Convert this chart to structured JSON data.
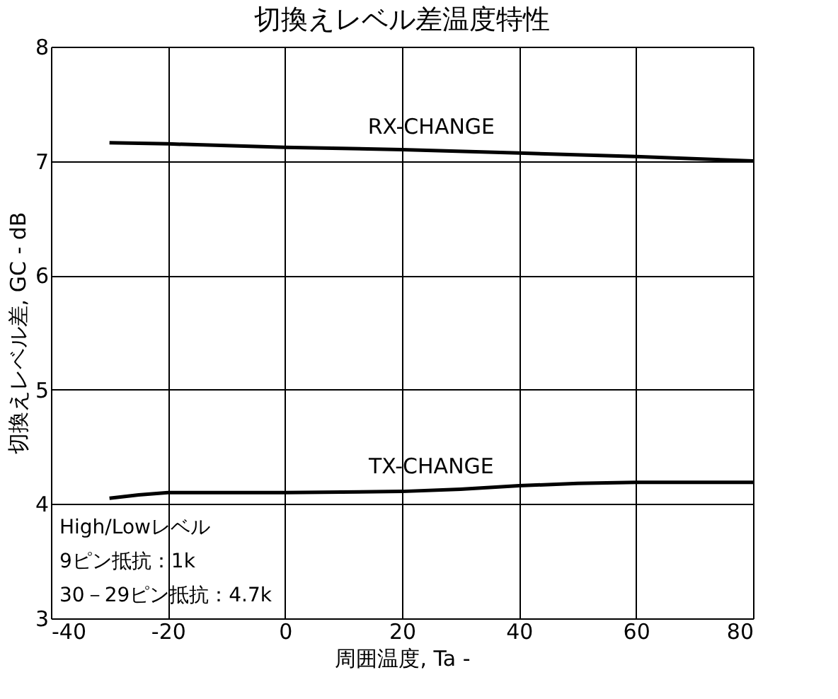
{
  "chart_data": {
    "type": "line",
    "title": "切換えレベル差温度特性",
    "xlabel": "周囲温度, Ta  -",
    "ylabel": "切換えレベル差, GC  -  dB",
    "xlim": [
      -40,
      80
    ],
    "xticks": [
      -40,
      -20,
      0,
      20,
      40,
      60,
      80
    ],
    "ylim": [
      3,
      8
    ],
    "yticks": [
      3,
      4,
      5,
      6,
      7,
      8
    ],
    "grid": true,
    "legend": false,
    "marker": "none",
    "line_style": "solid",
    "series": [
      {
        "name": "RX-CHANGE",
        "color": "#000000",
        "x": [
          -30,
          -20,
          0,
          20,
          40,
          60,
          80
        ],
        "values": [
          7.16,
          7.15,
          7.12,
          7.1,
          7.07,
          7.04,
          7.0
        ]
      },
      {
        "name": "TX-CHANGE",
        "color": "#000000",
        "x": [
          -30,
          -25,
          -20,
          0,
          20,
          30,
          40,
          50,
          60,
          80
        ],
        "values": [
          4.05,
          4.08,
          4.1,
          4.1,
          4.11,
          4.13,
          4.16,
          4.18,
          4.19,
          4.19
        ]
      }
    ],
    "annotations": [
      "High/Lowレベル",
      "9ピン抵抗：1k",
      "30－29ピン抵抗：4.7k"
    ]
  }
}
